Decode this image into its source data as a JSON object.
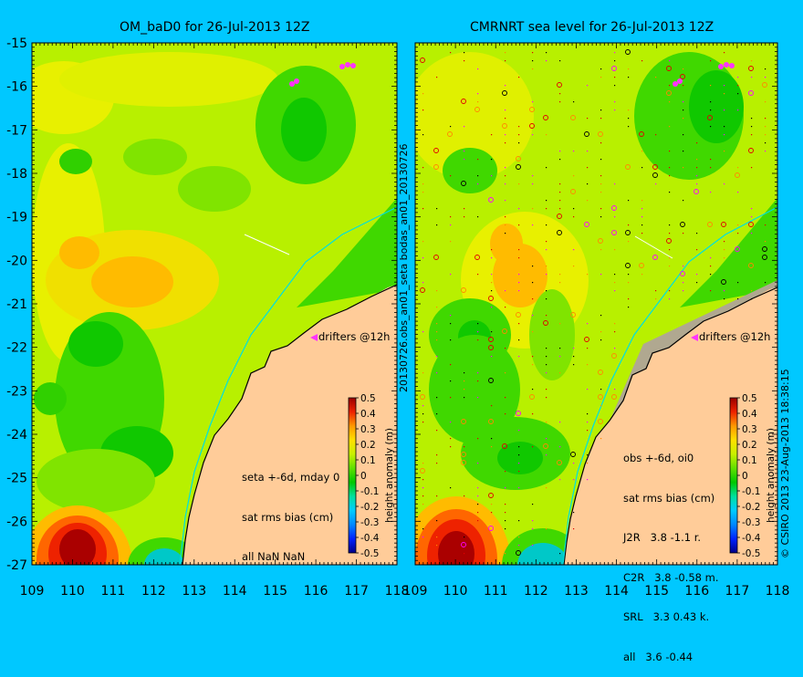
{
  "colors": {
    "background": "#00c8ff",
    "land": "#ffcc99",
    "coast": "#00e0e0",
    "drifter": "#ff33ff"
  },
  "chart_data": [
    {
      "type": "heatmap",
      "title": "OM_baD0 for 26-Jul-2013 12Z",
      "x_ticks": [
        "109",
        "110",
        "111",
        "112",
        "113",
        "114",
        "115",
        "116",
        "117",
        "118"
      ],
      "y_ticks": [
        "-15",
        "-16",
        "-17",
        "-18",
        "-19",
        "-20",
        "-21",
        "-22",
        "-23",
        "-24",
        "-25",
        "-26",
        "-27"
      ],
      "xlim": [
        109,
        118
      ],
      "ylim": [
        -27,
        -15
      ],
      "drifters_label": "drifters @12h",
      "info_lines": [
        "seta +-6d, mday 0",
        "sat rms bias (cm)",
        "all NaN NaN"
      ],
      "colorbar": {
        "label": "height anomaly (m)",
        "ticks": [
          "0.5",
          "0.4",
          "0.3",
          "0.2",
          "0.1",
          "0",
          "-0.1",
          "-0.2",
          "-0.3",
          "-0.4",
          "-0.5"
        ],
        "range": [
          -0.5,
          0.5
        ]
      }
    },
    {
      "type": "heatmap",
      "title": "CMRNRT sea level  for 26-Jul-2013 12Z",
      "x_ticks": [
        "109",
        "110",
        "111",
        "112",
        "113",
        "114",
        "115",
        "116",
        "117",
        "118"
      ],
      "xlim": [
        109,
        118
      ],
      "ylim": [
        -27,
        -15
      ],
      "drifters_label": "drifters @12h",
      "info_lines": [
        "obs +-6d, oi0",
        "sat rms bias (cm)",
        "J2R   3.8 -1.1 r.",
        "C2R   3.8 -0.58 m.",
        "SRL   3.3 0.43 k.",
        "all   3.6 -0.44"
      ],
      "colorbar": {
        "label": "height anomaly (m)",
        "ticks": [
          "0.5",
          "0.4",
          "0.3",
          "0.2",
          "0.1",
          "0",
          "-0.1",
          "-0.2",
          "-0.3",
          "-0.4",
          "-0.5"
        ],
        "range": [
          -0.5,
          0.5
        ]
      }
    }
  ],
  "side_labels": {
    "middle": "20130726.obs_an01_seta    bodas_an01_20130726",
    "right": "© CSIRO 2013   23-Aug-2013 18:38:15"
  }
}
